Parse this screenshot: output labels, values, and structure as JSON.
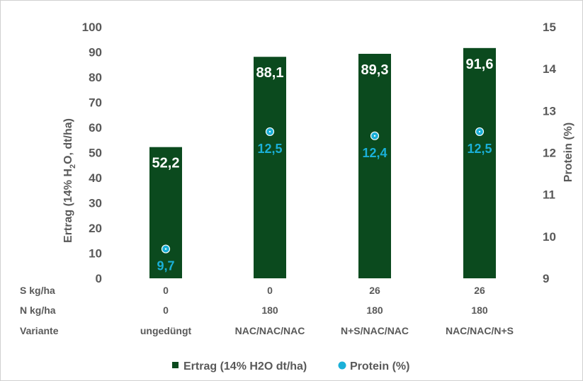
{
  "chart_data": {
    "type": "bar",
    "categories": [
      "ungedüngt",
      "NAC/NAC/NAC",
      "N+S/NAC/NAC",
      "NAC/NAC/N+S"
    ],
    "series": [
      {
        "name": "Ertrag (14% H2O dt/ha)",
        "type": "bar",
        "axis": "left",
        "values": [
          52.2,
          88.1,
          89.3,
          91.6
        ],
        "labels": [
          "52,2",
          "88,1",
          "89,3",
          "91,6"
        ],
        "color": "#0b4a1e"
      },
      {
        "name": "Protein (%)",
        "type": "scatter",
        "axis": "right",
        "values": [
          9.7,
          12.5,
          12.4,
          12.5
        ],
        "labels": [
          "9,7",
          "12,5",
          "12,4",
          "12,5"
        ],
        "color": "#1ab0d8"
      }
    ],
    "ylabel": "Ertrag (14% H2O, dt/ha)",
    "ylabel_parts": {
      "before": "Ertrag (14% H",
      "sub": "2",
      "after": "O, dt/ha)"
    },
    "y2label": "Protein (%)",
    "ylim": [
      0,
      100
    ],
    "y2lim": [
      9,
      15
    ],
    "yticks": [
      "0",
      "10",
      "20",
      "30",
      "40",
      "50",
      "60",
      "70",
      "80",
      "90",
      "100"
    ],
    "y2ticks": [
      "9",
      "10",
      "11",
      "12",
      "13",
      "14",
      "15"
    ],
    "table_rows": [
      {
        "label": "S kg/ha",
        "values": [
          "0",
          "0",
          "26",
          "26"
        ]
      },
      {
        "label": "N kg/ha",
        "values": [
          "0",
          "180",
          "180",
          "180"
        ]
      },
      {
        "label": "Variante",
        "values": [
          "ungedüngt",
          "NAC/NAC/NAC",
          "N+S/NAC/NAC",
          "NAC/NAC/N+S"
        ]
      }
    ],
    "legend_position": "bottom",
    "grid": false
  }
}
